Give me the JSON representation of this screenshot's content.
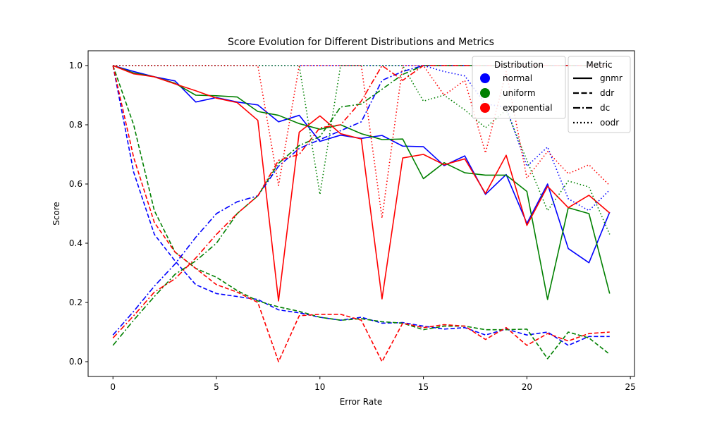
{
  "chart_data": {
    "type": "line",
    "title": "Score Evolution for Different Distributions and Metrics",
    "xlabel": "Error Rate",
    "ylabel": "Score",
    "xlim": [
      -1.2,
      25.2
    ],
    "ylim": [
      -0.05,
      1.05
    ],
    "xticks": [
      "0",
      "5",
      "10",
      "15",
      "20",
      "25"
    ],
    "yticks": [
      "0.0",
      "0.2",
      "0.4",
      "0.6",
      "0.8",
      "1.0"
    ],
    "grid": false,
    "x": [
      0,
      1,
      2,
      3,
      4,
      5,
      6,
      7,
      8,
      9,
      10,
      11,
      12,
      13,
      14,
      15,
      16,
      17,
      18,
      19,
      20,
      21,
      22,
      23,
      24
    ],
    "legends": {
      "distribution": {
        "title": "Distribution",
        "placement": "top-right",
        "entries": [
          {
            "label": "normal",
            "color": "#0000ff"
          },
          {
            "label": "uniform",
            "color": "#008000"
          },
          {
            "label": "exponential",
            "color": "#ff0000"
          }
        ]
      },
      "metric": {
        "title": "Metric",
        "placement": "top-right",
        "entries": [
          {
            "label": "gnmr",
            "style": "solid"
          },
          {
            "label": "ddr",
            "style": "dashed"
          },
          {
            "label": "dc",
            "style": "dashdot"
          },
          {
            "label": "oodr",
            "style": "dotted"
          }
        ]
      }
    },
    "series": [
      {
        "distribution": "normal",
        "metric": "gnmr",
        "color": "#0000ff",
        "style": "solid",
        "values": [
          1.0,
          0.98,
          0.962,
          0.948,
          0.877,
          0.892,
          0.877,
          0.867,
          0.81,
          0.832,
          0.744,
          0.765,
          0.754,
          0.764,
          0.728,
          0.726,
          0.662,
          0.695,
          0.565,
          0.632,
          0.467,
          0.6,
          0.382,
          0.334,
          0.505
        ]
      },
      {
        "distribution": "uniform",
        "metric": "gnmr",
        "color": "#008000",
        "style": "solid",
        "values": [
          1.0,
          0.975,
          0.962,
          0.94,
          0.9,
          0.898,
          0.894,
          0.845,
          0.832,
          0.804,
          0.785,
          0.8,
          0.77,
          0.75,
          0.752,
          0.618,
          0.672,
          0.638,
          0.63,
          0.63,
          0.575,
          0.21,
          0.52,
          0.5,
          0.23
        ]
      },
      {
        "distribution": "exponential",
        "metric": "gnmr",
        "color": "#ff0000",
        "style": "solid",
        "values": [
          1.0,
          0.972,
          0.962,
          0.938,
          0.915,
          0.89,
          0.875,
          0.815,
          0.205,
          0.775,
          0.83,
          0.77,
          0.752,
          0.212,
          0.688,
          0.7,
          0.665,
          0.685,
          0.568,
          0.697,
          0.46,
          0.592,
          0.52,
          0.562,
          0.502
        ]
      },
      {
        "distribution": "normal",
        "metric": "ddr",
        "color": "#0000ff",
        "style": "dashed",
        "values": [
          1.0,
          0.64,
          0.43,
          0.34,
          0.26,
          0.23,
          0.22,
          0.21,
          0.175,
          0.165,
          0.15,
          0.14,
          0.15,
          0.13,
          0.132,
          0.12,
          0.11,
          0.115,
          0.09,
          0.11,
          0.09,
          0.1,
          0.055,
          0.085,
          0.085
        ]
      },
      {
        "distribution": "uniform",
        "metric": "ddr",
        "color": "#008000",
        "style": "dashed",
        "values": [
          1.0,
          0.8,
          0.51,
          0.37,
          0.315,
          0.285,
          0.24,
          0.205,
          0.185,
          0.17,
          0.15,
          0.14,
          0.145,
          0.135,
          0.13,
          0.108,
          0.12,
          0.12,
          0.108,
          0.108,
          0.11,
          0.01,
          0.1,
          0.08,
          0.025
        ]
      },
      {
        "distribution": "exponential",
        "metric": "ddr",
        "color": "#ff0000",
        "style": "dashed",
        "values": [
          1.0,
          0.69,
          0.47,
          0.37,
          0.315,
          0.26,
          0.235,
          0.2,
          0.0,
          0.155,
          0.16,
          0.16,
          0.14,
          0.0,
          0.13,
          0.115,
          0.125,
          0.12,
          0.075,
          0.115,
          0.055,
          0.095,
          0.07,
          0.095,
          0.1
        ]
      },
      {
        "distribution": "normal",
        "metric": "dc",
        "color": "#0000ff",
        "style": "dashdot",
        "values": [
          0.09,
          0.17,
          0.255,
          0.33,
          0.42,
          0.5,
          0.54,
          0.56,
          0.66,
          0.72,
          0.75,
          0.78,
          0.81,
          0.95,
          0.98,
          1.0,
          1.0,
          1.0,
          1.0,
          1.0,
          1.0,
          1.0,
          1.0,
          1.0,
          1.0
        ]
      },
      {
        "distribution": "uniform",
        "metric": "dc",
        "color": "#008000",
        "style": "dashdot",
        "values": [
          0.055,
          0.14,
          0.22,
          0.295,
          0.34,
          0.4,
          0.5,
          0.56,
          0.67,
          0.73,
          0.76,
          0.86,
          0.87,
          0.92,
          0.97,
          1.0,
          1.0,
          1.0,
          1.0,
          1.0,
          1.0,
          1.0,
          1.0,
          1.0,
          1.0
        ]
      },
      {
        "distribution": "exponential",
        "metric": "dc",
        "color": "#ff0000",
        "style": "dashdot",
        "values": [
          0.08,
          0.155,
          0.235,
          0.28,
          0.35,
          0.43,
          0.5,
          0.56,
          0.68,
          0.7,
          0.79,
          0.8,
          0.88,
          1.0,
          0.95,
          1.0,
          1.0,
          1.0,
          1.0,
          1.0,
          1.0,
          1.0,
          1.0,
          1.0,
          1.0
        ]
      },
      {
        "distribution": "normal",
        "metric": "oodr",
        "color": "#0000ff",
        "style": "dotted",
        "values": [
          1.0,
          1.0,
          1.0,
          1.0,
          1.0,
          1.0,
          1.0,
          1.0,
          1.0,
          1.0,
          1.0,
          1.0,
          1.0,
          1.0,
          1.0,
          1.0,
          0.98,
          0.965,
          0.87,
          0.86,
          0.66,
          0.725,
          0.55,
          0.51,
          0.58
        ]
      },
      {
        "distribution": "uniform",
        "metric": "oodr",
        "color": "#008000",
        "style": "dotted",
        "values": [
          1.0,
          1.0,
          1.0,
          1.0,
          1.0,
          1.0,
          1.0,
          1.0,
          1.0,
          1.0,
          0.565,
          1.0,
          1.0,
          1.0,
          1.0,
          0.88,
          0.9,
          0.85,
          0.79,
          0.85,
          0.68,
          0.51,
          0.61,
          0.59,
          0.43
        ]
      },
      {
        "distribution": "exponential",
        "metric": "oodr",
        "color": "#ff0000",
        "style": "dotted",
        "values": [
          1.0,
          1.0,
          1.0,
          1.0,
          1.0,
          1.0,
          1.0,
          1.0,
          0.595,
          1.0,
          1.0,
          1.0,
          1.0,
          0.485,
          1.0,
          1.0,
          0.9,
          0.95,
          0.705,
          0.98,
          0.62,
          0.71,
          0.635,
          0.665,
          0.595
        ]
      }
    ]
  }
}
